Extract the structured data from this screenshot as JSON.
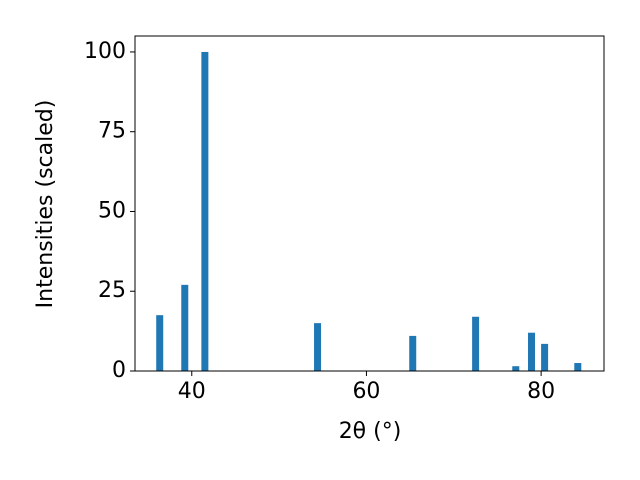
{
  "chart_data": {
    "type": "bar",
    "xlabel": "2θ (°)",
    "ylabel": "Intensities (scaled)",
    "x": [
      36.33,
      39.2,
      41.5,
      54.4,
      65.3,
      72.5,
      77.1,
      78.9,
      80.4,
      84.2
    ],
    "values": [
      17.5,
      27,
      100,
      15,
      11,
      17,
      1.5,
      12,
      8.5,
      2.5
    ],
    "color": "#1f77b4",
    "xlim": [
      33.5,
      87.2
    ],
    "xticks": [
      40,
      60,
      80
    ],
    "ylim": [
      0,
      105
    ],
    "yticks": [
      0,
      25,
      50,
      75,
      100
    ],
    "grid": false
  }
}
